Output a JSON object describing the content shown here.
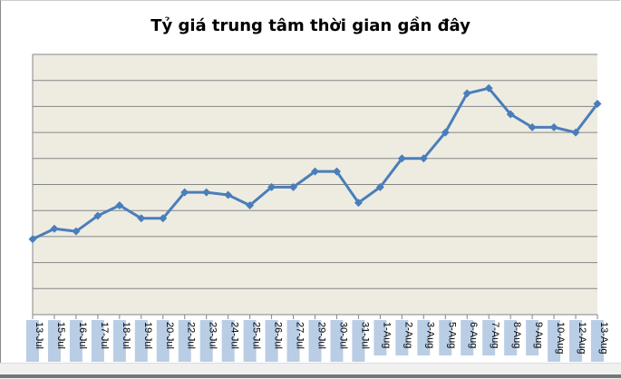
{
  "chart_data": {
    "type": "line",
    "title": "Tỷ giá trung tâm thời gian gần đây",
    "xlabel": "",
    "ylabel": "",
    "y_tick_labels_shown": false,
    "grid": true,
    "gridlines": 10,
    "ylim": [
      0,
      10
    ],
    "categories": [
      "13-Jul",
      "15-Jul",
      "16-Jul",
      "17-Jul",
      "18-Jul",
      "19-Jul",
      "20-Jul",
      "22-Jul",
      "23-Jul",
      "24-Jul",
      "25-Jul",
      "26-Jul",
      "27-Jul",
      "29-Jul",
      "30-Jul",
      "31-Jul",
      "1-Aug",
      "2-Aug",
      "3-Aug",
      "5-Aug",
      "6-Aug",
      "7-Aug",
      "8-Aug",
      "9-Aug",
      "10-Aug",
      "12-Aug",
      "13-Aug"
    ],
    "series": [
      {
        "values": [
          2.9,
          3.3,
          3.2,
          3.8,
          4.2,
          3.7,
          3.7,
          4.7,
          4.7,
          4.6,
          4.2,
          4.9,
          4.9,
          5.5,
          5.5,
          4.3,
          4.9,
          6.0,
          6.0,
          7.0,
          8.5,
          8.7,
          7.7,
          7.2,
          7.2,
          7.0,
          8.1
        ]
      }
    ],
    "colors": {
      "line": "#4a7ebb",
      "plot_bg": "#eeece1",
      "grid": "#868686",
      "label_bg": "#b9cde5"
    }
  }
}
